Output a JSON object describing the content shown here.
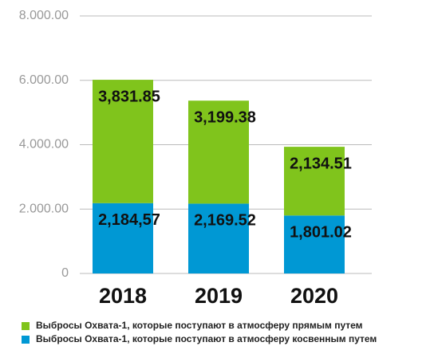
{
  "chart_data": {
    "type": "stacked_bar",
    "categories": [
      "2018",
      "2019",
      "2020"
    ],
    "series": [
      {
        "name": "Выбросы Охвата-1, которые поступают в атмосферу косвенным путем",
        "color": "#0098d4",
        "values": [
          2184.57,
          2169.52,
          1801.02
        ],
        "value_labels": [
          "2,184,57",
          "2,169.52",
          "1,801.02"
        ]
      },
      {
        "name": "Выбросы Охвата-1, которые поступают в атмосферу прямым путем",
        "color": "#80c41c",
        "values": [
          3831.85,
          3199.38,
          2134.51
        ],
        "value_labels": [
          "3,831.85",
          "3,199.38",
          "2,134.51"
        ]
      }
    ],
    "legend_order": [
      1,
      0
    ],
    "ylim": [
      0,
      8000
    ],
    "yticks": [
      0,
      {
        "value": 2000,
        "label": "2.000.00"
      },
      {
        "value": 4000,
        "label": "4.000.00"
      },
      {
        "value": 6000,
        "label": "6.000.00"
      },
      {
        "value": 8000,
        "label": "8.000.00"
      }
    ],
    "grid": true
  }
}
